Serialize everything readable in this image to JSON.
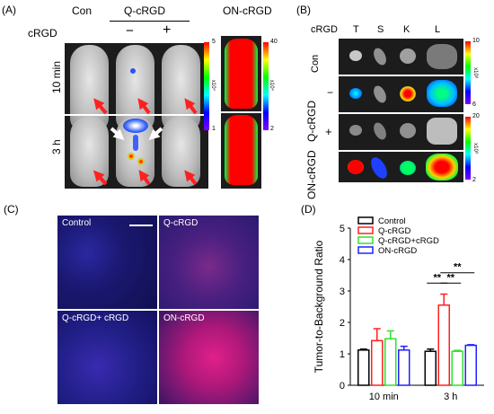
{
  "panel_a": {
    "label": "(A)",
    "col_con": "Con",
    "col_q": "Q-cRGD",
    "col_on": "ON-cRGD",
    "row_crgd": "cRGD",
    "minus": "−",
    "plus": "+",
    "row_10min": "10 min",
    "row_3h": "3 h",
    "cbar_q": {
      "max": "5",
      "min": "1",
      "exp": "x10⁴"
    },
    "cbar_on": {
      "max": "40",
      "min": "2",
      "exp": "x10⁴"
    }
  },
  "panel_b": {
    "label": "(B)",
    "col_crgd": "cRGD",
    "organs": [
      "T",
      "S",
      "K",
      "L"
    ],
    "row_con": "Con",
    "row_q": "Q-cRGD",
    "row_on": "ON-cRGD",
    "minus": "−",
    "plus": "+",
    "cbar_1": {
      "max": "10",
      "min": "6",
      "exp": "x10³"
    },
    "cbar_2": {
      "max": "20",
      "min": "2",
      "exp": "x10³"
    }
  },
  "panel_c": {
    "label": "(C)",
    "images": [
      "Control",
      "Q-cRGD",
      "Q-cRGD+ cRGD",
      "ON-cRGD"
    ]
  },
  "panel_d": {
    "label": "(D)"
  },
  "chart_data": {
    "type": "bar",
    "ylabel": "Tumor-to-Background Ratio",
    "categories": [
      "10 min",
      "3 h"
    ],
    "ylim": [
      0,
      5
    ],
    "yticks": [
      "0",
      "1",
      "2",
      "3",
      "4",
      "5"
    ],
    "legend_position": "top-right",
    "series": [
      {
        "name": "Control",
        "color": "#000000",
        "values": [
          1.12,
          1.08
        ],
        "errors": [
          0.03,
          0.07
        ]
      },
      {
        "name": "Q-cRGD",
        "color": "#ff2020",
        "values": [
          1.42,
          2.55
        ],
        "errors": [
          0.38,
          0.35
        ]
      },
      {
        "name": "Q-cRGD+cRGD",
        "color": "#30e030",
        "values": [
          1.48,
          1.08
        ],
        "errors": [
          0.25,
          0.03
        ]
      },
      {
        "name": "ON-cRGD",
        "color": "#2020ff",
        "values": [
          1.12,
          1.27
        ],
        "errors": [
          0.12,
          0.02
        ]
      }
    ],
    "annotations": [
      "**",
      "**",
      "**"
    ]
  }
}
